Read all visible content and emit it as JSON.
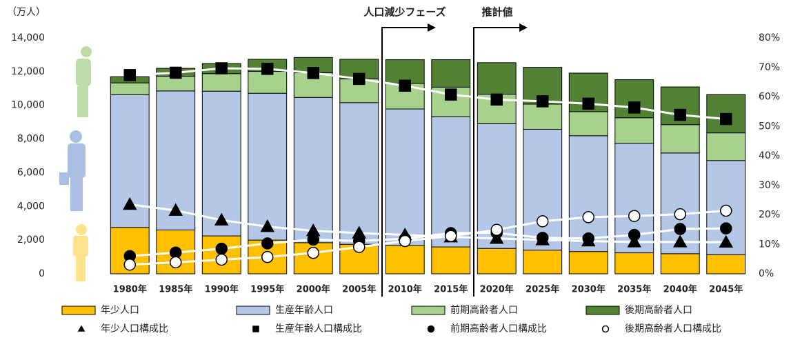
{
  "chart_data": {
    "type": "bar",
    "stacked": true,
    "y_label": "（万人）",
    "categories": [
      "1980年",
      "1985年",
      "1990年",
      "1995年",
      "2000年",
      "2005年",
      "2010年",
      "2015年",
      "2020年",
      "2025年",
      "2030年",
      "2035年",
      "2040年",
      "2045年"
    ],
    "series": [
      {
        "name": "年少人口",
        "type": "bar",
        "color": "#ffc000",
        "values": [
          2751,
          2603,
          2249,
          2001,
          1847,
          1752,
          1680,
          1595,
          1507,
          1407,
          1321,
          1246,
          1194,
          1138
        ]
      },
      {
        "name": "生産年齢人口",
        "type": "bar",
        "color": "#b4c7e7",
        "values": [
          7883,
          8251,
          8590,
          8716,
          8622,
          8409,
          8103,
          7728,
          7406,
          7170,
          6875,
          6494,
          5978,
          5584
        ]
      },
      {
        "name": "前期高齢者人口",
        "type": "bar",
        "color": "#a9d18e",
        "values": [
          699,
          871,
          1042,
          1297,
          1470,
          1412,
          1517,
          1755,
          1747,
          1497,
          1428,
          1522,
          1681,
          1643
        ]
      },
      {
        "name": "後期高齢者人口",
        "type": "bar",
        "color": "#548235",
        "values": [
          366,
          471,
          597,
          717,
          901,
          1160,
          1407,
          1632,
          1872,
          2180,
          2288,
          2260,
          2239,
          2277
        ]
      },
      {
        "name": "年少人口構成比",
        "type": "line",
        "axis": "y2",
        "marker": "triangle",
        "color": "#000000",
        "values": [
          23.5,
          21.5,
          18.2,
          16.0,
          14.6,
          13.8,
          13.2,
          12.5,
          12.0,
          11.5,
          11.1,
          10.8,
          10.8,
          10.7
        ]
      },
      {
        "name": "生産年齢人口構成比",
        "type": "line",
        "axis": "y2",
        "marker": "square",
        "color": "#000000",
        "values": [
          67.4,
          68.2,
          69.7,
          69.5,
          68.1,
          66.1,
          63.8,
          60.8,
          59.1,
          58.5,
          57.7,
          56.4,
          53.9,
          52.5
        ]
      },
      {
        "name": "前期高齢者人口構成比",
        "type": "line",
        "axis": "y2",
        "marker": "circle",
        "color": "#000000",
        "values": [
          6.0,
          7.2,
          8.5,
          10.3,
          11.6,
          11.1,
          11.9,
          13.8,
          13.9,
          12.2,
          12.0,
          13.2,
          15.2,
          15.4
        ]
      },
      {
        "name": "後期高齢者人口構成比",
        "type": "line",
        "axis": "y2",
        "marker": "circle",
        "color": "#ffffff",
        "values": [
          3.1,
          3.9,
          4.8,
          5.7,
          7.1,
          9.1,
          11.1,
          12.8,
          14.9,
          17.8,
          19.2,
          19.6,
          20.2,
          21.4
        ]
      }
    ],
    "ylim": [
      0,
      14000
    ],
    "yticks": [
      0,
      {
        "value": 2000,
        "label": "2,000"
      },
      {
        "value": 4000,
        "label": "4,000"
      },
      {
        "value": 6000,
        "label": "6,000"
      },
      {
        "value": 8000,
        "label": "8,000"
      },
      {
        "value": 10000,
        "label": "10,000"
      },
      {
        "value": 12000,
        "label": "12,000"
      },
      {
        "value": 14000,
        "label": "14,000"
      }
    ],
    "y2lim": [
      0,
      80
    ],
    "y2ticks": [
      {
        "value": 0,
        "label": "0%"
      },
      {
        "value": 10,
        "label": "10%"
      },
      {
        "value": 20,
        "label": "20%"
      },
      {
        "value": 30,
        "label": "30%"
      },
      {
        "value": 40,
        "label": "40%"
      },
      {
        "value": 50,
        "label": "50%"
      },
      {
        "value": 60,
        "label": "60%"
      },
      {
        "value": 70,
        "label": "70%"
      },
      {
        "value": 80,
        "label": "80%"
      }
    ],
    "annotations": [
      "人口減少フェーズ",
      "推計値"
    ]
  }
}
